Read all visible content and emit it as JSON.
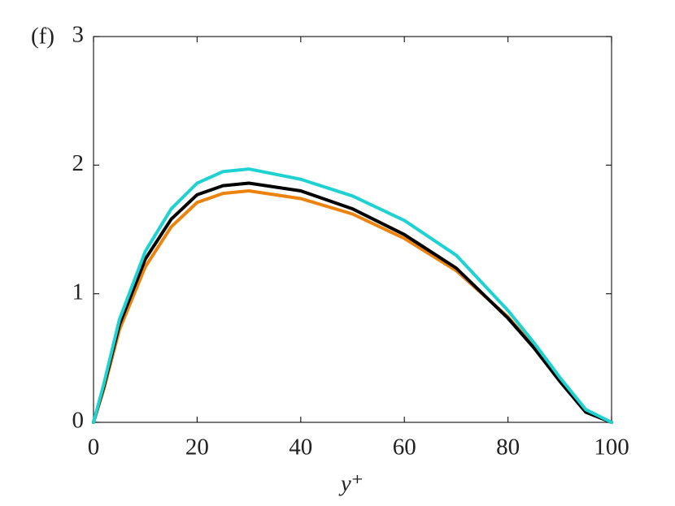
{
  "chart_data": {
    "type": "line",
    "annotation": "(f)",
    "xlabel": "y⁺",
    "x": [
      0,
      2,
      5,
      10,
      15,
      20,
      25,
      30,
      40,
      50,
      60,
      70,
      80,
      85,
      90,
      95,
      100
    ],
    "series": [
      {
        "color": "#ec830f",
        "values": [
          0,
          0.26,
          0.72,
          1.21,
          1.52,
          1.71,
          1.78,
          1.8,
          1.74,
          1.62,
          1.43,
          1.18,
          0.82,
          0.59,
          0.33,
          0.09,
          0
        ]
      },
      {
        "color": "#000000",
        "values": [
          0,
          0.28,
          0.76,
          1.27,
          1.58,
          1.77,
          1.84,
          1.86,
          1.8,
          1.66,
          1.46,
          1.2,
          0.81,
          0.58,
          0.32,
          0.08,
          0
        ]
      },
      {
        "color": "#1ed2d2",
        "values": [
          0,
          0.3,
          0.8,
          1.33,
          1.66,
          1.86,
          1.95,
          1.97,
          1.89,
          1.76,
          1.57,
          1.3,
          0.87,
          0.62,
          0.35,
          0.1,
          0
        ]
      }
    ],
    "xlim": [
      0,
      100
    ],
    "xticks": [
      0,
      20,
      40,
      60,
      80,
      100
    ],
    "ylim": [
      0,
      3
    ],
    "yticks": [
      0,
      1,
      2,
      3
    ]
  }
}
